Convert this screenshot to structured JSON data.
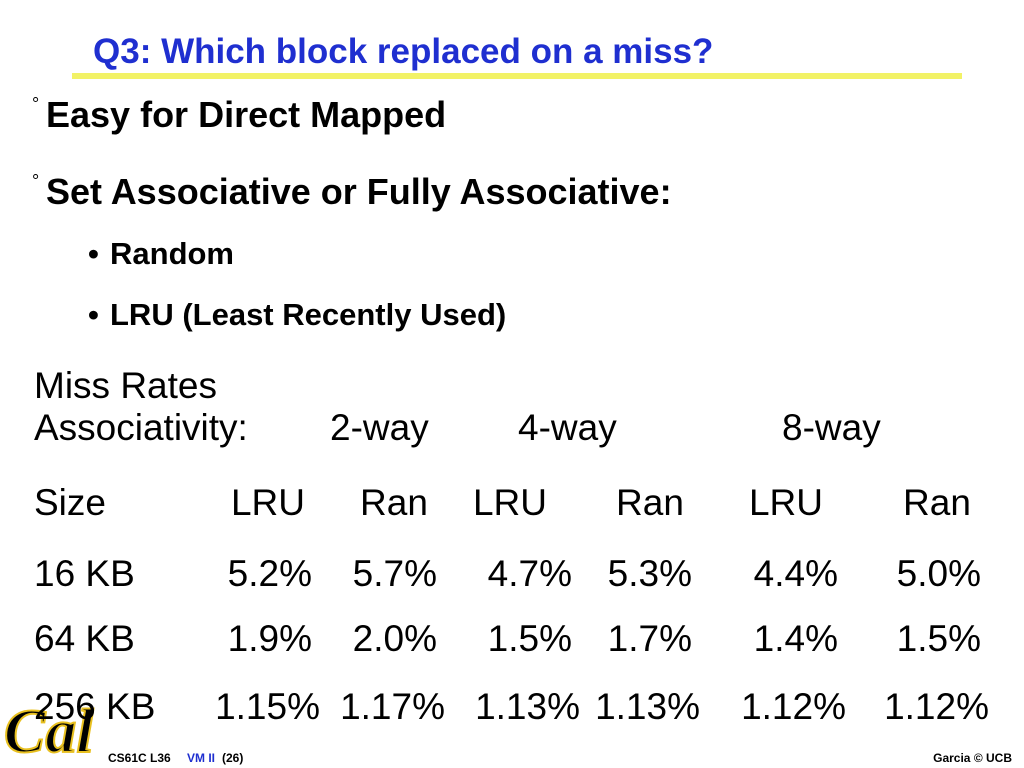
{
  "title": "Q3: Which block replaced on a miss?",
  "bullets": [
    "Easy for Direct Mapped",
    "Set Associative or Fully Associative:"
  ],
  "subbullets": [
    "Random",
    "LRU (Least Recently Used)"
  ],
  "miss_rates": {
    "title": "Miss Rates",
    "associativity_label": "Associativity:",
    "ways": [
      "2-way",
      "4-way",
      "8-way"
    ],
    "header": [
      "Size",
      "LRU",
      "Ran",
      "LRU",
      "Ran",
      "LRU",
      "Ran"
    ],
    "rows": [
      [
        "16 KB",
        "5.2%",
        "5.7%",
        "4.7%",
        "5.3%",
        "4.4%",
        "5.0%"
      ],
      [
        "64 KB",
        "1.9%",
        "2.0%",
        "1.5%",
        "1.7%",
        "1.4%",
        "1.5%"
      ],
      [
        "256 KB",
        "1.15%",
        "1.17%",
        "1.13%",
        "1.13%",
        "1.12%",
        "1.12%"
      ]
    ]
  },
  "logo": "Cal",
  "footer": {
    "course": "CS61C L36",
    "topic": "VM II",
    "page": "(26)",
    "credit": "Garcia © UCB"
  }
}
